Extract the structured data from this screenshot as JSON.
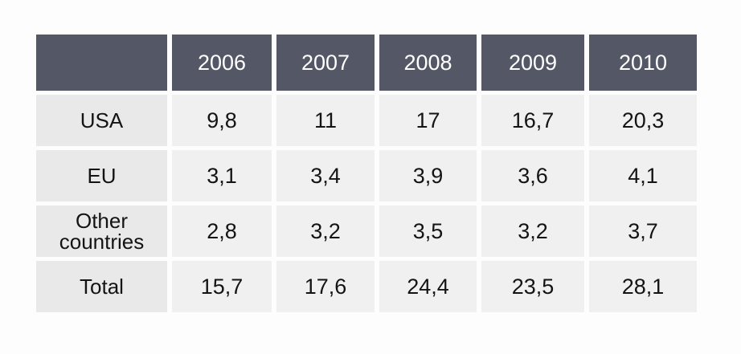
{
  "chart_data": {
    "type": "table",
    "columns": [
      "",
      "2006",
      "2007",
      "2008",
      "2009",
      "2010"
    ],
    "rows": [
      {
        "label": "USA",
        "values": [
          "9,8",
          "11",
          "17",
          "16,7",
          "20,3"
        ]
      },
      {
        "label": "EU",
        "values": [
          "3,1",
          "3,4",
          "3,9",
          "3,6",
          "4,1"
        ]
      },
      {
        "label": "Other countries",
        "values": [
          "2,8",
          "3,2",
          "3,5",
          "3,2",
          "3,7"
        ]
      },
      {
        "label": "Total",
        "values": [
          "15,7",
          "17,6",
          "24,4",
          "23,5",
          "28,1"
        ]
      }
    ]
  },
  "colors": {
    "header_background": "#545866",
    "header_text": "#ffffff",
    "cell_background": "#f0f0f1",
    "label_background": "#e9e9ea",
    "cell_text": "#141414"
  }
}
